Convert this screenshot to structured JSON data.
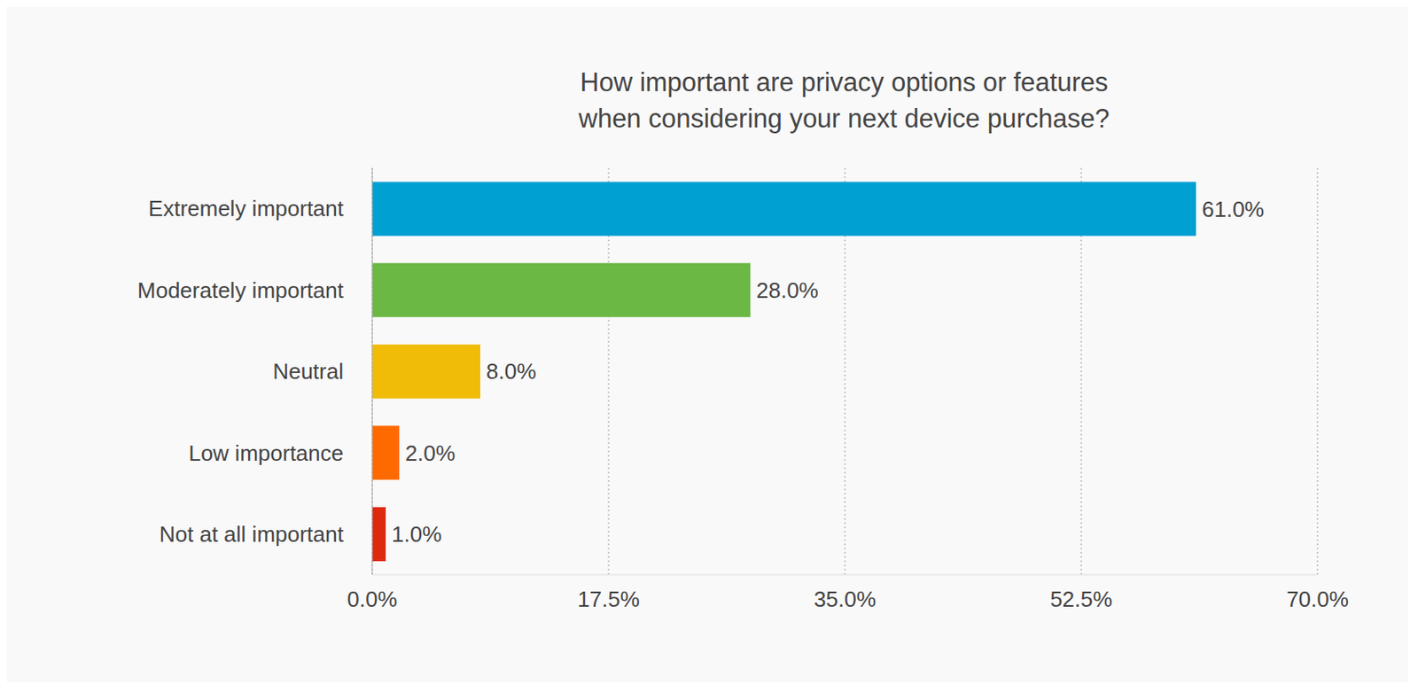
{
  "chart_data": {
    "type": "bar",
    "orientation": "horizontal",
    "title": "How important are privacy options or features\nwhen considering your next device purchase?",
    "categories": [
      "Extremely important",
      "Moderately important",
      "Neutral",
      "Low importance",
      "Not at all important"
    ],
    "values": [
      61,
      28,
      8,
      2,
      1
    ],
    "value_labels": [
      "61.0%",
      "28.0%",
      "8.0%",
      "2.0%",
      "1.0%"
    ],
    "colors": [
      "#00a0d2",
      "#6bb845",
      "#f0bc08",
      "#ff6a00",
      "#dd2a0f"
    ],
    "xlim": [
      0,
      70
    ],
    "xticks": [
      {
        "value": 0,
        "label": "0.0%"
      },
      {
        "value": 17.5,
        "label": "17.5%"
      },
      {
        "value": 35,
        "label": "35.0%"
      },
      {
        "value": 52.5,
        "label": "52.5%"
      },
      {
        "value": 70,
        "label": "70.0%"
      }
    ],
    "grid": true,
    "data_labels": true
  }
}
